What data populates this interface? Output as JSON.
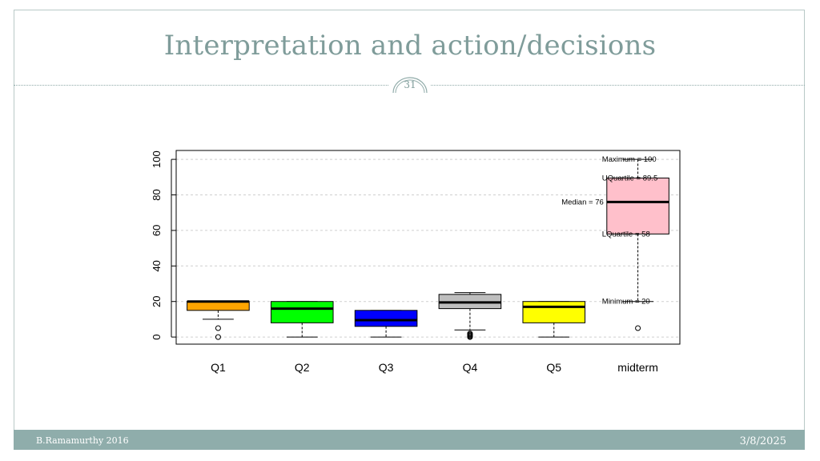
{
  "slide": {
    "title": "Interpretation and action/decisions",
    "slide_number": "31",
    "footer_left": "B.Ramamurthy 2016",
    "footer_right": "3/8/2025"
  },
  "colors": {
    "accent": "#8fadab",
    "title": "#7f9c9a"
  },
  "chart_data": {
    "type": "boxplot",
    "title": "",
    "xlabel": "",
    "ylabel": "",
    "ylim": [
      -4,
      105
    ],
    "yticks": [
      0,
      20,
      40,
      60,
      80,
      100
    ],
    "grid": true,
    "categories": [
      "Q1",
      "Q2",
      "Q3",
      "Q4",
      "Q5",
      "midterm"
    ],
    "boxes": [
      {
        "name": "Q1",
        "color": "#ffa500",
        "whisker_low": 10,
        "q1": 15,
        "median": 20,
        "q3": 20,
        "whisker_high": 20,
        "outliers": [
          5,
          0
        ]
      },
      {
        "name": "Q2",
        "color": "#00ff00",
        "whisker_low": 0,
        "q1": 8,
        "median": 16,
        "q3": 20,
        "whisker_high": 20,
        "outliers": []
      },
      {
        "name": "Q3",
        "color": "#0000ff",
        "whisker_low": 0,
        "q1": 6,
        "median": 9.5,
        "q3": 15,
        "whisker_high": 15,
        "outliers": []
      },
      {
        "name": "Q4",
        "color": "#bebebe",
        "whisker_low": 4,
        "q1": 16,
        "median": 19.5,
        "q3": 24,
        "whisker_high": 25,
        "outliers": [
          2,
          1.5,
          1,
          0.5,
          0
        ]
      },
      {
        "name": "Q5",
        "color": "#ffff00",
        "whisker_low": 0,
        "q1": 8,
        "median": 17,
        "q3": 20,
        "whisker_high": 20,
        "outliers": []
      },
      {
        "name": "midterm",
        "color": "#ffc0cb",
        "whisker_low": 20,
        "q1": 58,
        "median": 76,
        "q3": 89.5,
        "whisker_high": 100,
        "outliers": [
          5
        ]
      }
    ],
    "annotations": [
      {
        "text": "Maximum = 100",
        "value": 100,
        "anchor": "left"
      },
      {
        "text": "UQuartile = 89.5",
        "value": 89.5,
        "anchor": "left"
      },
      {
        "text": "Median = 76",
        "value": 76,
        "anchor": "right"
      },
      {
        "text": "LQuartile = 58",
        "value": 58,
        "anchor": "left"
      },
      {
        "text": "Minimum = 20",
        "value": 20,
        "anchor": "left"
      }
    ]
  }
}
